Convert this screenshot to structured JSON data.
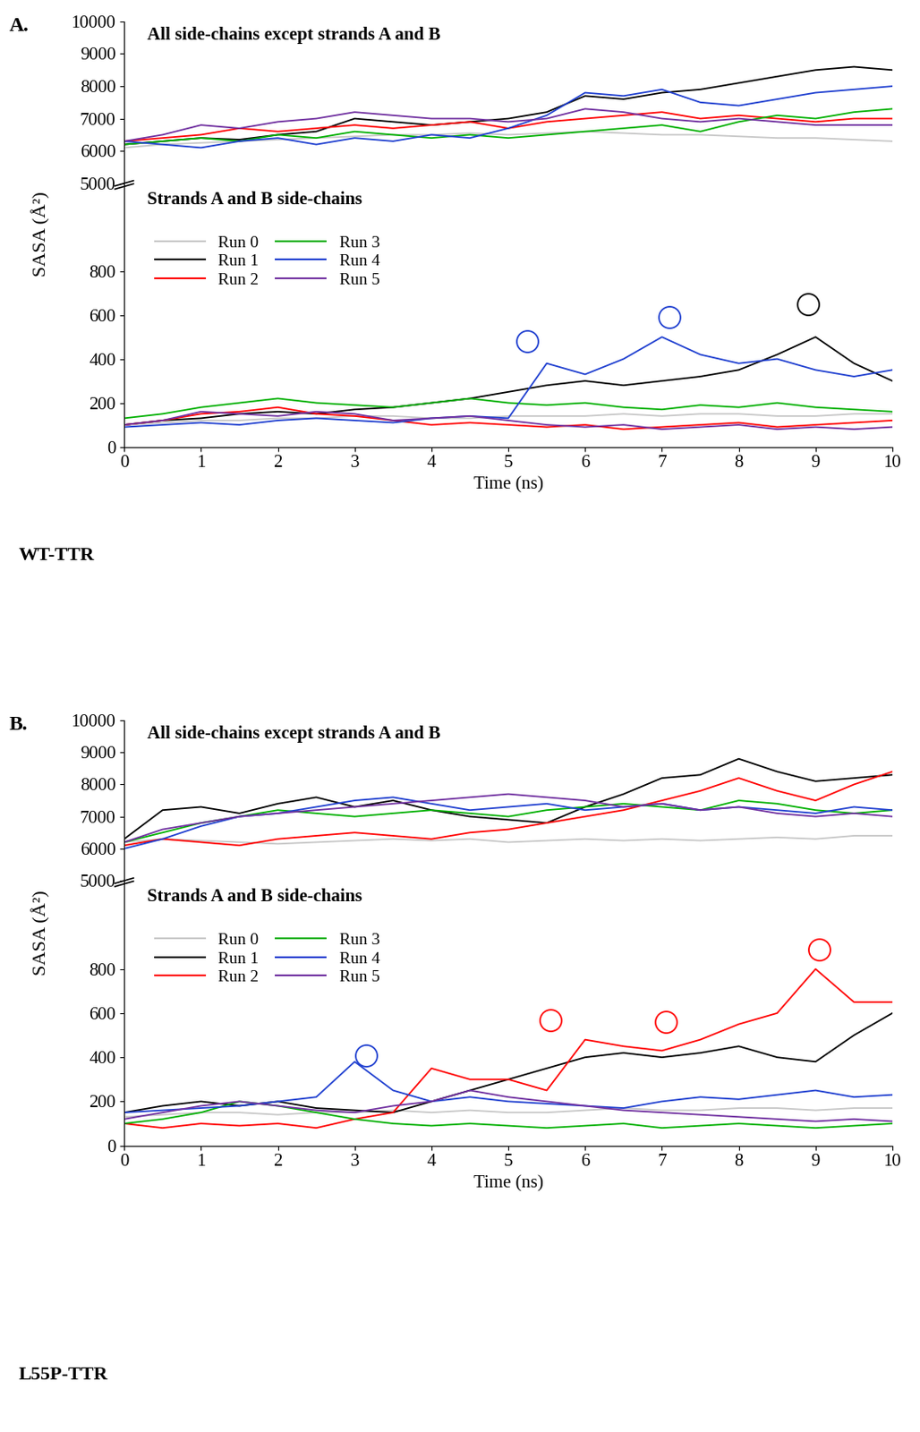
{
  "chart_data": [
    {
      "type": "line",
      "panel_label": "A.",
      "y_label": "SASA (Å²)",
      "x_label": "Time (ns)",
      "structure_label": "WT-TTR",
      "subplots": [
        {
          "title": "All side-chains except strands A and B",
          "xlim": [
            0,
            10
          ],
          "ylim": [
            5000,
            10000
          ],
          "yticks": [
            5000,
            6000,
            7000,
            8000,
            9000,
            10000
          ],
          "tick_labels": "y",
          "x": [
            0,
            0.5,
            1,
            1.5,
            2,
            2.5,
            3,
            3.5,
            4,
            4.5,
            5,
            5.5,
            6,
            6.5,
            7,
            7.5,
            8,
            8.5,
            9,
            9.5,
            10
          ],
          "series": [
            {
              "name": "Run 0",
              "color": "#c8c8c8",
              "values": [
                6100,
                6200,
                6250,
                6300,
                6350,
                6400,
                6450,
                6500,
                6500,
                6550,
                6500,
                6550,
                6600,
                6550,
                6500,
                6500,
                6450,
                6400,
                6400,
                6350,
                6300
              ]
            },
            {
              "name": "Run 1",
              "color": "#000000",
              "values": [
                6200,
                6300,
                6400,
                6350,
                6500,
                6600,
                7000,
                6900,
                6800,
                6900,
                7000,
                7200,
                7700,
                7600,
                7800,
                7900,
                8100,
                8300,
                8500,
                8600,
                8500
              ]
            },
            {
              "name": "Run 2",
              "color": "#ff0000",
              "values": [
                6300,
                6400,
                6500,
                6700,
                6600,
                6700,
                6800,
                6700,
                6800,
                6900,
                6700,
                6900,
                7000,
                7100,
                7200,
                7000,
                7100,
                7000,
                6900,
                7000,
                7000
              ]
            },
            {
              "name": "Run 3",
              "color": "#00b000",
              "values": [
                6200,
                6300,
                6400,
                6300,
                6500,
                6400,
                6600,
                6500,
                6400,
                6500,
                6400,
                6500,
                6600,
                6700,
                6800,
                6600,
                6900,
                7100,
                7000,
                7200,
                7300
              ]
            },
            {
              "name": "Run 4",
              "color": "#2040d0",
              "values": [
                6300,
                6200,
                6100,
                6300,
                6400,
                6200,
                6400,
                6300,
                6500,
                6400,
                6700,
                7100,
                7800,
                7700,
                7900,
                7500,
                7400,
                7600,
                7800,
                7900,
                8000
              ]
            },
            {
              "name": "Run 5",
              "color": "#7030a0",
              "values": [
                6300,
                6500,
                6800,
                6700,
                6900,
                7000,
                7200,
                7100,
                7000,
                7000,
                6900,
                7000,
                7300,
                7200,
                7000,
                6900,
                7000,
                6900,
                6800,
                6800,
                6800
              ]
            }
          ]
        },
        {
          "title": "Strands A and B side-chains",
          "xlim": [
            0,
            10
          ],
          "ylim": [
            0,
            1200
          ],
          "xticks": [
            0,
            1,
            2,
            3,
            4,
            5,
            6,
            7,
            8,
            9,
            10
          ],
          "yticks": [
            0,
            200,
            400,
            600,
            800
          ],
          "legend": "upper left",
          "x": [
            0,
            0.5,
            1,
            1.5,
            2,
            2.5,
            3,
            3.5,
            4,
            4.5,
            5,
            5.5,
            6,
            6.5,
            7,
            7.5,
            8,
            8.5,
            9,
            9.5,
            10
          ],
          "series": [
            {
              "name": "Run 0",
              "color": "#c8c8c8",
              "values": [
                100,
                110,
                120,
                120,
                130,
                130,
                140,
                140,
                130,
                130,
                140,
                140,
                140,
                150,
                140,
                150,
                150,
                140,
                140,
                150,
                150
              ]
            },
            {
              "name": "Run 1",
              "color": "#000000",
              "values": [
                100,
                120,
                130,
                150,
                160,
                150,
                170,
                180,
                200,
                220,
                250,
                280,
                300,
                280,
                300,
                320,
                350,
                420,
                500,
                380,
                300
              ]
            },
            {
              "name": "Run 2",
              "color": "#ff0000",
              "values": [
                100,
                120,
                150,
                160,
                180,
                150,
                140,
                120,
                100,
                110,
                100,
                90,
                100,
                80,
                90,
                100,
                110,
                90,
                100,
                110,
                120
              ]
            },
            {
              "name": "Run 3",
              "color": "#00b000",
              "values": [
                130,
                150,
                180,
                200,
                220,
                200,
                190,
                180,
                200,
                220,
                200,
                190,
                200,
                180,
                170,
                190,
                180,
                200,
                180,
                170,
                160
              ]
            },
            {
              "name": "Run 4",
              "color": "#2040d0",
              "values": [
                90,
                100,
                110,
                100,
                120,
                130,
                120,
                110,
                130,
                140,
                130,
                380,
                330,
                400,
                500,
                420,
                380,
                400,
                350,
                320,
                350
              ]
            },
            {
              "name": "Run 5",
              "color": "#7030a0",
              "values": [
                100,
                120,
                160,
                150,
                140,
                160,
                150,
                120,
                130,
                140,
                120,
                100,
                90,
                100,
                80,
                90,
                100,
                80,
                90,
                80,
                90
              ]
            }
          ],
          "highlights": [
            {
              "series": "Run 4",
              "x": 5.25,
              "y": 480
            },
            {
              "series": "Run 4",
              "x": 7.1,
              "y": 590
            },
            {
              "series": "Run 1",
              "x": 8.9,
              "y": 650
            }
          ]
        }
      ]
    },
    {
      "type": "line",
      "panel_label": "B.",
      "y_label": "SASA (Å²)",
      "x_label": "Time (ns)",
      "structure_label": "L55P-TTR",
      "subplots": [
        {
          "title": "All side-chains except strands A and B",
          "xlim": [
            0,
            10
          ],
          "ylim": [
            5000,
            10000
          ],
          "yticks": [
            5000,
            6000,
            7000,
            8000,
            9000,
            10000
          ],
          "tick_labels": "y",
          "x": [
            0,
            0.5,
            1,
            1.5,
            2,
            2.5,
            3,
            3.5,
            4,
            4.5,
            5,
            5.5,
            6,
            6.5,
            7,
            7.5,
            8,
            8.5,
            9,
            9.5,
            10
          ],
          "series": [
            {
              "name": "Run 0",
              "color": "#c8c8c8",
              "values": [
                6200,
                6300,
                6250,
                6200,
                6150,
                6200,
                6250,
                6300,
                6250,
                6300,
                6200,
                6250,
                6300,
                6250,
                6300,
                6250,
                6300,
                6350,
                6300,
                6400,
                6400
              ]
            },
            {
              "name": "Run 1",
              "color": "#000000",
              "values": [
                6300,
                7200,
                7300,
                7100,
                7400,
                7600,
                7300,
                7500,
                7200,
                7000,
                6900,
                6800,
                7300,
                7700,
                8200,
                8300,
                8800,
                8400,
                8100,
                8200,
                8300
              ]
            },
            {
              "name": "Run 2",
              "color": "#ff0000",
              "values": [
                6100,
                6300,
                6200,
                6100,
                6300,
                6400,
                6500,
                6400,
                6300,
                6500,
                6600,
                6800,
                7000,
                7200,
                7500,
                7800,
                8200,
                7800,
                7500,
                8000,
                8400
              ]
            },
            {
              "name": "Run 3",
              "color": "#00b000",
              "values": [
                6200,
                6500,
                6800,
                7000,
                7200,
                7100,
                7000,
                7100,
                7200,
                7100,
                7000,
                7200,
                7300,
                7400,
                7300,
                7200,
                7500,
                7400,
                7200,
                7100,
                7200
              ]
            },
            {
              "name": "Run 4",
              "color": "#2040d0",
              "values": [
                6000,
                6300,
                6700,
                7000,
                7100,
                7300,
                7500,
                7600,
                7400,
                7200,
                7300,
                7400,
                7200,
                7300,
                7400,
                7200,
                7300,
                7200,
                7100,
                7300,
                7200
              ]
            },
            {
              "name": "Run 5",
              "color": "#7030a0",
              "values": [
                6200,
                6600,
                6800,
                7000,
                7100,
                7200,
                7300,
                7400,
                7500,
                7600,
                7700,
                7600,
                7500,
                7300,
                7400,
                7200,
                7300,
                7100,
                7000,
                7100,
                7000
              ]
            }
          ]
        },
        {
          "title": "Strands A and B side-chains",
          "xlim": [
            0,
            10
          ],
          "ylim": [
            0,
            1200
          ],
          "xticks": [
            0,
            1,
            2,
            3,
            4,
            5,
            6,
            7,
            8,
            9,
            10
          ],
          "yticks": [
            0,
            200,
            400,
            600,
            800
          ],
          "legend": "upper left",
          "x": [
            0,
            0.5,
            1,
            1.5,
            2,
            2.5,
            3,
            3.5,
            4,
            4.5,
            5,
            5.5,
            6,
            6.5,
            7,
            7.5,
            8,
            8.5,
            9,
            9.5,
            10
          ],
          "series": [
            {
              "name": "Run 0",
              "color": "#c8c8c8",
              "values": [
                130,
                140,
                150,
                150,
                140,
                150,
                150,
                160,
                150,
                160,
                150,
                150,
                160,
                170,
                160,
                160,
                170,
                170,
                160,
                170,
                170
              ]
            },
            {
              "name": "Run 1",
              "color": "#000000",
              "values": [
                150,
                180,
                200,
                180,
                200,
                170,
                160,
                150,
                200,
                250,
                300,
                350,
                400,
                420,
                400,
                420,
                450,
                400,
                380,
                500,
                600
              ]
            },
            {
              "name": "Run 2",
              "color": "#ff0000",
              "values": [
                100,
                80,
                100,
                90,
                100,
                80,
                120,
                150,
                350,
                300,
                300,
                250,
                480,
                450,
                430,
                480,
                550,
                600,
                800,
                650,
                650
              ]
            },
            {
              "name": "Run 3",
              "color": "#00b000",
              "values": [
                100,
                120,
                150,
                200,
                180,
                150,
                120,
                100,
                90,
                100,
                90,
                80,
                90,
                100,
                80,
                90,
                100,
                90,
                80,
                90,
                100
              ]
            },
            {
              "name": "Run 4",
              "color": "#2040d0",
              "values": [
                150,
                160,
                170,
                180,
                200,
                220,
                380,
                250,
                200,
                220,
                200,
                190,
                180,
                170,
                200,
                220,
                210,
                230,
                250,
                220,
                230
              ]
            },
            {
              "name": "Run 5",
              "color": "#7030a0",
              "values": [
                120,
                150,
                180,
                200,
                180,
                160,
                150,
                180,
                200,
                250,
                220,
                200,
                180,
                160,
                150,
                140,
                130,
                120,
                110,
                120,
                110
              ]
            }
          ],
          "highlights": [
            {
              "series": "Run 4",
              "x": 3.15,
              "y": 410
            },
            {
              "series": "Run 2",
              "x": 5.55,
              "y": 570
            },
            {
              "series": "Run 2",
              "x": 7.05,
              "y": 560
            },
            {
              "series": "Run 2",
              "x": 9.05,
              "y": 890
            }
          ]
        }
      ]
    }
  ]
}
